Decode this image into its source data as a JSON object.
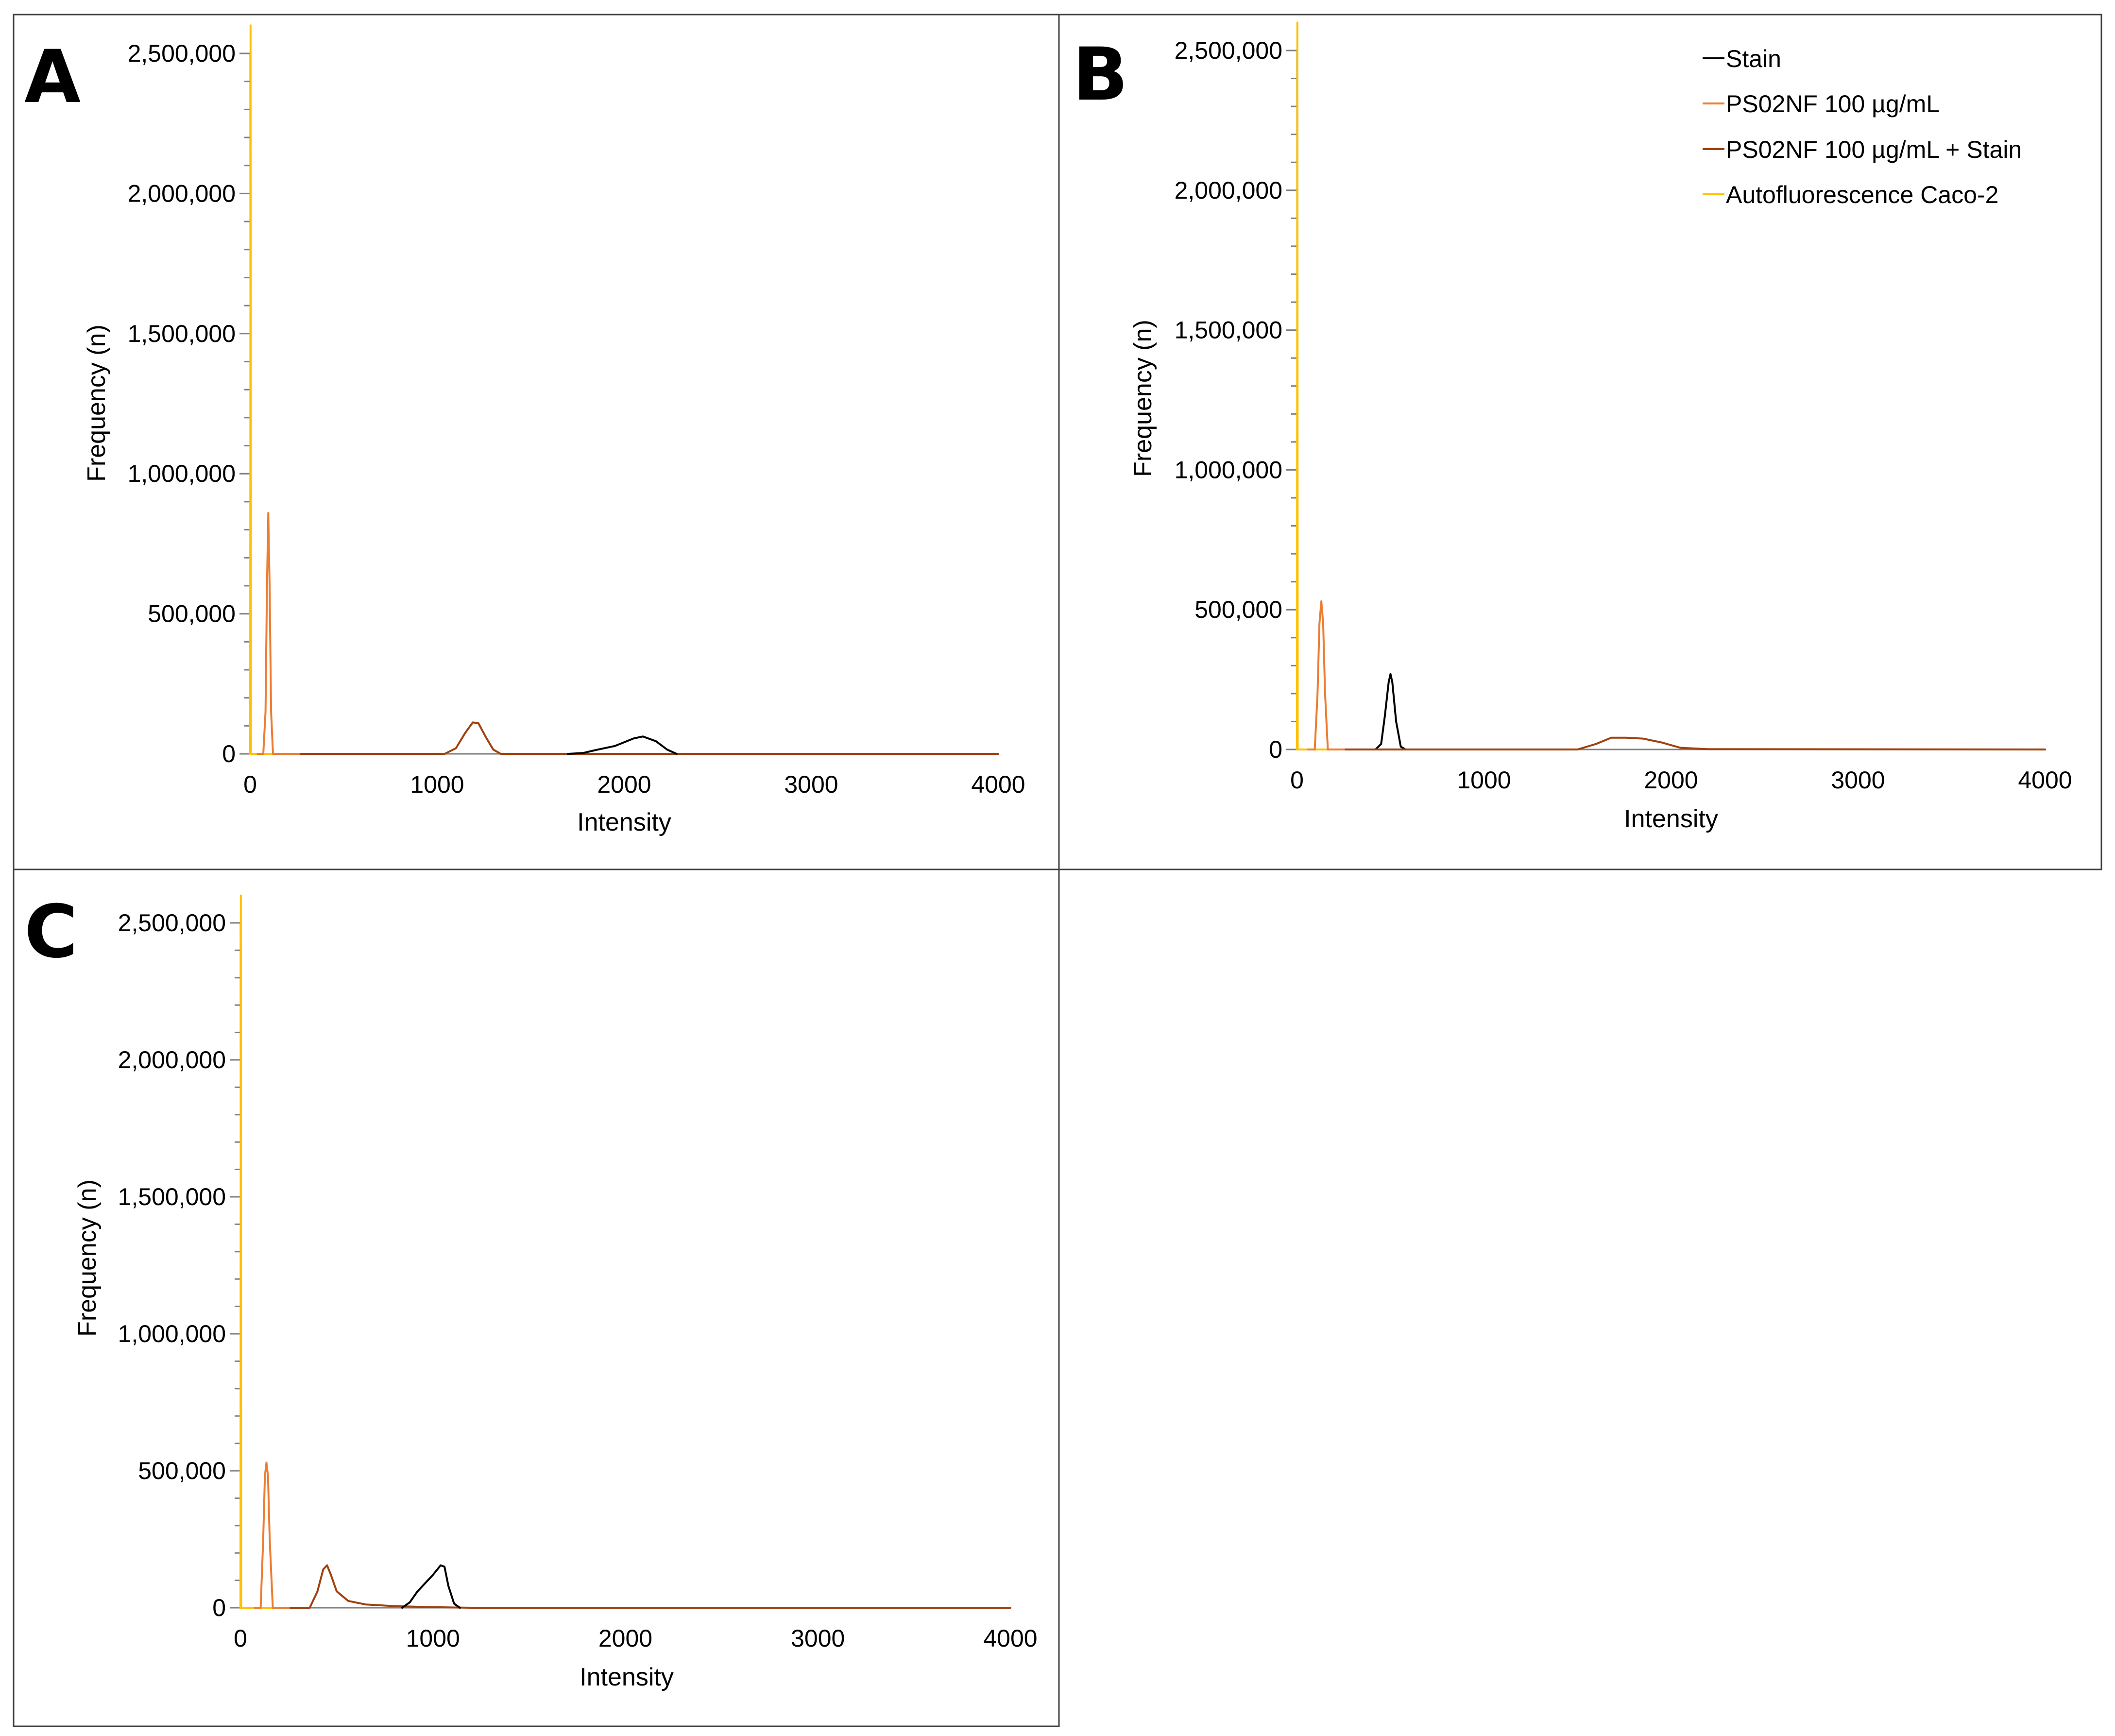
{
  "colors": {
    "stain": "#000000",
    "ps02nf": "#ED7D31",
    "ps02nf_stain": "#A0410D",
    "autofluorescence": "#FFC000",
    "axis": "#7F7F7F",
    "frame": "#404040"
  },
  "legend": {
    "entries": [
      {
        "label": "Stain",
        "series_key": "stain"
      },
      {
        "label": "PS02NF 100 µg/mL",
        "series_key": "ps02nf"
      },
      {
        "label": "PS02NF 100 µg/mL + Stain",
        "series_key": "ps02nf_stain"
      },
      {
        "label": "Autofluorescence Caco-2",
        "series_key": "autofluorescence"
      }
    ]
  },
  "chart_data": [
    {
      "panel": "A",
      "type": "line",
      "title": "",
      "xlabel": "Intensity",
      "ylabel": "Frequency (n)",
      "xlim": [
        0,
        4000
      ],
      "ylim": [
        0,
        2500000
      ],
      "x_ticks": [
        "0",
        "1000",
        "2000",
        "3000",
        "4000"
      ],
      "y_ticks": [
        "0",
        "500,000",
        "1,000,000",
        "1,500,000",
        "2,000,000",
        "2,500,000"
      ],
      "series": [
        {
          "key": "autofluorescence",
          "name": "Autofluorescence Caco-2",
          "points": [
            [
              0,
              0
            ],
            [
              2,
              2600000
            ],
            [
              4,
              0
            ],
            [
              120,
              0
            ],
            [
              270,
              0
            ]
          ]
        },
        {
          "key": "ps02nf",
          "name": "PS02NF 100 µg/mL",
          "points": [
            [
              40,
              0
            ],
            [
              70,
              0
            ],
            [
              82,
              150000
            ],
            [
              90,
              600000
            ],
            [
              97,
              860000
            ],
            [
              104,
              600000
            ],
            [
              112,
              150000
            ],
            [
              122,
              0
            ],
            [
              270,
              0
            ]
          ]
        },
        {
          "key": "ps02nf_stain",
          "name": "PS02NF 100 µg/mL + Stain",
          "points": [
            [
              270,
              0
            ],
            [
              1040,
              0
            ],
            [
              1100,
              20000
            ],
            [
              1150,
              75000
            ],
            [
              1190,
              112000
            ],
            [
              1220,
              110000
            ],
            [
              1260,
              60000
            ],
            [
              1300,
              15000
            ],
            [
              1340,
              0
            ],
            [
              4000,
              0
            ]
          ]
        },
        {
          "key": "stain",
          "name": "Stain",
          "points": [
            [
              1700,
              0
            ],
            [
              1780,
              3000
            ],
            [
              1850,
              14000
            ],
            [
              1950,
              28000
            ],
            [
              2050,
              55000
            ],
            [
              2100,
              62000
            ],
            [
              2170,
              45000
            ],
            [
              2230,
              15000
            ],
            [
              2280,
              0
            ]
          ]
        }
      ]
    },
    {
      "panel": "B",
      "type": "line",
      "title": "",
      "xlabel": "Intensity",
      "ylabel": "Frequency (n)",
      "xlim": [
        0,
        4000
      ],
      "ylim": [
        0,
        2500000
      ],
      "x_ticks": [
        "0",
        "1000",
        "2000",
        "3000",
        "4000"
      ],
      "y_ticks": [
        "0",
        "500,000",
        "1,000,000",
        "1,500,000",
        "2,000,000",
        "2,500,000"
      ],
      "series": [
        {
          "key": "autofluorescence",
          "name": "Autofluorescence Caco-2",
          "points": [
            [
              0,
              0
            ],
            [
              2,
              2600000
            ],
            [
              4,
              0
            ],
            [
              150,
              0
            ],
            [
              260,
              0
            ]
          ]
        },
        {
          "key": "ps02nf",
          "name": "PS02NF 100 µg/mL",
          "points": [
            [
              60,
              0
            ],
            [
              95,
              0
            ],
            [
              110,
              200000
            ],
            [
              120,
              450000
            ],
            [
              130,
              530000
            ],
            [
              140,
              450000
            ],
            [
              150,
              200000
            ],
            [
              165,
              0
            ],
            [
              260,
              0
            ]
          ]
        },
        {
          "key": "stain",
          "name": "Stain",
          "points": [
            [
              420,
              0
            ],
            [
              450,
              20000
            ],
            [
              470,
              120000
            ],
            [
              490,
              240000
            ],
            [
              500,
              270000
            ],
            [
              510,
              240000
            ],
            [
              530,
              100000
            ],
            [
              555,
              10000
            ],
            [
              580,
              0
            ]
          ]
        },
        {
          "key": "ps02nf_stain",
          "name": "PS02NF 100 µg/mL + Stain",
          "points": [
            [
              260,
              0
            ],
            [
              1500,
              0
            ],
            [
              1600,
              20000
            ],
            [
              1680,
              42000
            ],
            [
              1760,
              42000
            ],
            [
              1850,
              39000
            ],
            [
              1950,
              25000
            ],
            [
              2050,
              6000
            ],
            [
              2200,
              1000
            ],
            [
              4000,
              0
            ]
          ]
        }
      ]
    },
    {
      "panel": "C",
      "type": "line",
      "title": "",
      "xlabel": "Intensity",
      "ylabel": "Frequency (n)",
      "xlim": [
        0,
        4000
      ],
      "ylim": [
        0,
        2500000
      ],
      "x_ticks": [
        "0",
        "1000",
        "2000",
        "3000",
        "4000"
      ],
      "y_ticks": [
        "0",
        "500,000",
        "1,000,000",
        "1,500,000",
        "2,000,000",
        "2,500,000"
      ],
      "series": [
        {
          "key": "autofluorescence",
          "name": "Autofluorescence Caco-2",
          "points": [
            [
              0,
              0
            ],
            [
              2,
              2600000
            ],
            [
              4,
              0
            ],
            [
              150,
              0
            ],
            [
              260,
              0
            ]
          ]
        },
        {
          "key": "ps02nf",
          "name": "PS02NF 100 µg/mL",
          "points": [
            [
              75,
              0
            ],
            [
              105,
              0
            ],
            [
              118,
              250000
            ],
            [
              127,
              480000
            ],
            [
              135,
              530000
            ],
            [
              143,
              480000
            ],
            [
              152,
              250000
            ],
            [
              168,
              0
            ],
            [
              260,
              0
            ]
          ]
        },
        {
          "key": "ps02nf_stain",
          "name": "PS02NF 100 µg/mL + Stain",
          "points": [
            [
              260,
              0
            ],
            [
              360,
              0
            ],
            [
              400,
              60000
            ],
            [
              430,
              140000
            ],
            [
              450,
              155000
            ],
            [
              470,
              120000
            ],
            [
              500,
              60000
            ],
            [
              560,
              25000
            ],
            [
              650,
              12000
            ],
            [
              800,
              6000
            ],
            [
              950,
              3000
            ],
            [
              1100,
              1000
            ],
            [
              1200,
              0
            ],
            [
              4000,
              0
            ]
          ]
        },
        {
          "key": "stain",
          "name": "Stain",
          "points": [
            [
              840,
              0
            ],
            [
              880,
              20000
            ],
            [
              920,
              60000
            ],
            [
              960,
              90000
            ],
            [
              1000,
              120000
            ],
            [
              1040,
              155000
            ],
            [
              1060,
              150000
            ],
            [
              1080,
              80000
            ],
            [
              1110,
              15000
            ],
            [
              1140,
              0
            ]
          ]
        }
      ]
    }
  ]
}
